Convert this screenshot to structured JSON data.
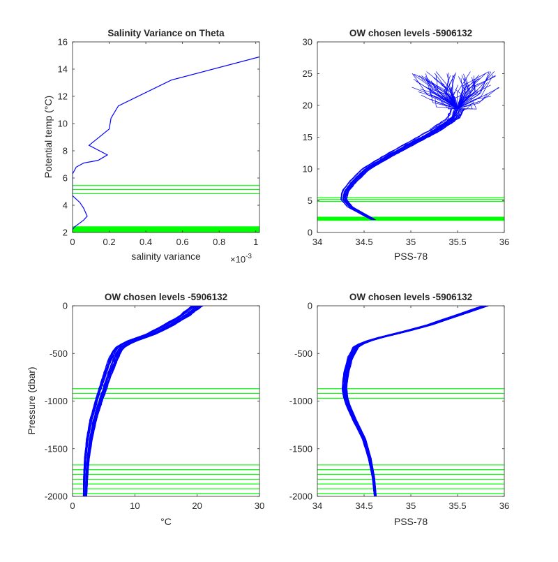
{
  "colors": {
    "profile": "#0000ff",
    "chosen_levels": "#00ff00",
    "axes": "#262626",
    "background": "#ffffff"
  },
  "chart_data": [
    {
      "type": "line",
      "title": "Salinity Variance on Theta",
      "xlabel": "salinity variance",
      "ylabel": "Potential temp (°C)",
      "x_exponent_label": "×10",
      "x_exponent_power": "-3",
      "xlim": [
        0,
        1.02
      ],
      "ylim": [
        2,
        16
      ],
      "xticks": [
        0,
        0.2,
        0.4,
        0.6,
        0.8,
        1
      ],
      "xtick_labels": [
        "0",
        "0.2",
        "0.4",
        "0.6",
        "0.8",
        "1"
      ],
      "yticks": [
        2,
        4,
        6,
        8,
        10,
        12,
        14,
        16
      ],
      "ytick_labels": [
        "2",
        "4",
        "6",
        "8",
        "10",
        "12",
        "14",
        "16"
      ],
      "series": [
        {
          "x": [
            1.02,
            0.54,
            0.25,
            0.21,
            0.2,
            0.09,
            0.19,
            0.14,
            0.06,
            0.02,
            0.0,
            0.0,
            0.0,
            0.0,
            0.04,
            0.06,
            0.07,
            0.08,
            0.06,
            0.03,
            0.01,
            0.0
          ],
          "y": [
            14.9,
            13.2,
            11.3,
            10.4,
            9.6,
            8.4,
            7.7,
            7.3,
            7.1,
            6.8,
            6.3,
            5.6,
            5.0,
            4.7,
            4.2,
            3.8,
            3.5,
            3.2,
            2.9,
            2.6,
            2.4,
            2.2
          ]
        }
      ],
      "chosen_levels": [
        2.02,
        2.06,
        2.1,
        2.14,
        2.18,
        2.22,
        2.26,
        2.3,
        2.34,
        2.38,
        2.42,
        4.85,
        5.15,
        5.45
      ]
    },
    {
      "type": "line",
      "title": "OW chosen levels -5906132",
      "xlabel": "PSS-78",
      "ylabel": "",
      "xlim": [
        34,
        36
      ],
      "ylim": [
        0,
        30
      ],
      "xticks": [
        34,
        34.5,
        35,
        35.5,
        36
      ],
      "xtick_labels": [
        "34",
        "34.5",
        "35",
        "35.5",
        "36"
      ],
      "yticks": [
        0,
        5,
        10,
        15,
        20,
        25,
        30
      ],
      "ytick_labels": [
        "0",
        "5",
        "10",
        "15",
        "20",
        "25",
        "30"
      ],
      "profile_band": {
        "x": [
          34.6,
          34.5,
          34.35,
          34.28,
          34.3,
          34.38,
          34.52,
          34.75,
          35.0,
          35.25,
          35.45,
          35.5
        ],
        "y": [
          2.0,
          2.8,
          4.0,
          5.2,
          6.5,
          8.0,
          10.0,
          12.0,
          14.0,
          16.0,
          18.0,
          19.5
        ],
        "spread": 0.05,
        "count": 30
      },
      "spray": {
        "origin": [
          35.5,
          19.5
        ],
        "x_range": [
          35.0,
          35.95
        ],
        "y_range": [
          19.5,
          25.5
        ],
        "count": 90
      },
      "chosen_levels": [
        1.9,
        2.0,
        2.1,
        2.2,
        2.3,
        2.4,
        4.9,
        5.2,
        5.5
      ]
    },
    {
      "type": "line",
      "title": "OW chosen levels -5906132",
      "xlabel": "°C",
      "ylabel": "Pressure (dbar)",
      "xlim": [
        0,
        30
      ],
      "ylim": [
        -2000,
        0
      ],
      "xticks": [
        0,
        10,
        20,
        30
      ],
      "xtick_labels": [
        "0",
        "10",
        "20",
        "30"
      ],
      "yticks": [
        -2000,
        -1500,
        -1000,
        -500,
        0
      ],
      "ytick_labels": [
        "-2000",
        "-1500",
        "-1000",
        "-500",
        "0"
      ],
      "profile_band": {
        "x": [
          2.0,
          2.1,
          2.3,
          2.7,
          3.3,
          4.2,
          5.2,
          6.0,
          6.6,
          7.1,
          7.8,
          9.5,
          12.5,
          15.5,
          18.0,
          20.0
        ],
        "y": [
          -2000,
          -1800,
          -1600,
          -1400,
          -1200,
          -1000,
          -800,
          -650,
          -550,
          -480,
          -420,
          -370,
          -300,
          -200,
          -100,
          0
        ],
        "spread": 0.6,
        "count": 40
      },
      "chosen_levels": [
        -870,
        -920,
        -970,
        -1670,
        -1720,
        -1770,
        -1820,
        -1870,
        -1920,
        -1970
      ]
    },
    {
      "type": "line",
      "title": "OW chosen levels -5906132",
      "xlabel": "PSS-78",
      "ylabel": "",
      "xlim": [
        34,
        36
      ],
      "ylim": [
        -2000,
        0
      ],
      "xticks": [
        34,
        34.5,
        35,
        35.5,
        36
      ],
      "xtick_labels": [
        "34",
        "34.5",
        "35",
        "35.5",
        "36"
      ],
      "yticks": [
        -2000,
        -1500,
        -1000,
        -500,
        0
      ],
      "ytick_labels": [
        "-2000",
        "-1500",
        "-1000",
        "-500",
        "0"
      ],
      "profile_band": {
        "x": [
          34.62,
          34.6,
          34.56,
          34.5,
          34.4,
          34.33,
          34.3,
          34.29,
          34.31,
          34.35,
          34.42,
          34.6,
          34.9,
          35.2,
          35.5,
          35.8
        ],
        "y": [
          -2000,
          -1800,
          -1600,
          -1400,
          -1200,
          -1050,
          -950,
          -850,
          -700,
          -550,
          -420,
          -350,
          -280,
          -200,
          -100,
          0
        ],
        "spread": 0.025,
        "count": 40
      },
      "chosen_levels": [
        -870,
        -920,
        -970,
        -1670,
        -1720,
        -1770,
        -1820,
        -1870,
        -1920,
        -1970
      ]
    }
  ]
}
